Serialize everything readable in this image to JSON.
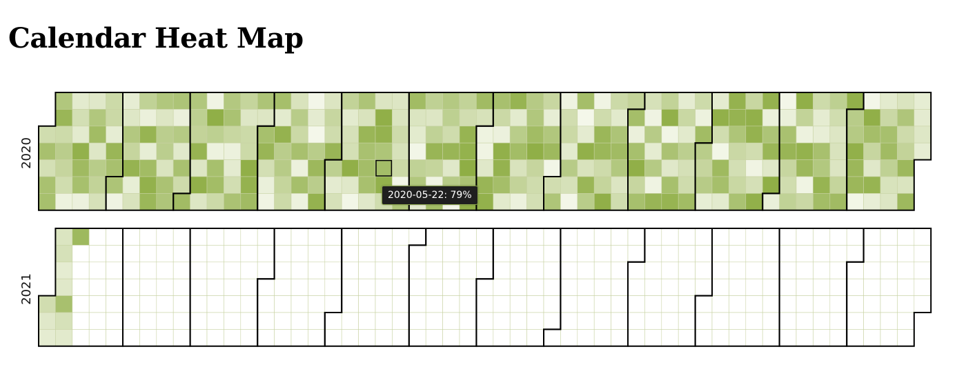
{
  "page": {
    "title": "Calendar Heat Map"
  },
  "tooltip": {
    "text": "2020-05-22: 79%"
  },
  "colors": {
    "high": "#8fae45",
    "low": "#f4f7ea",
    "empty": "#ffffff",
    "grid": "#c8d3a4",
    "month_border": "#000000"
  },
  "chart_data": {
    "type": "heatmap",
    "subtype": "calendar",
    "unit": "%",
    "value_range": [
      0,
      100
    ],
    "week_start": "Monday",
    "years": [
      {
        "year": "2020",
        "start": "2020-01-01",
        "end": "2020-12-31",
        "filled": true
      },
      {
        "year": "2021",
        "start": "2021-01-01",
        "end": "2021-12-31",
        "filled_through": "2021-01-11",
        "values": {
          "2021-01-01": 35,
          "2021-01-02": 20,
          "2021-01-03": 15,
          "2021-01-04": 25,
          "2021-01-05": 30,
          "2021-01-06": 15,
          "2021-01-07": 20,
          "2021-01-08": 75,
          "2021-01-09": 30,
          "2021-01-10": 18,
          "2021-01-11": 85
        }
      }
    ],
    "highlight": {
      "date": "2020-05-22",
      "value": 79
    }
  }
}
